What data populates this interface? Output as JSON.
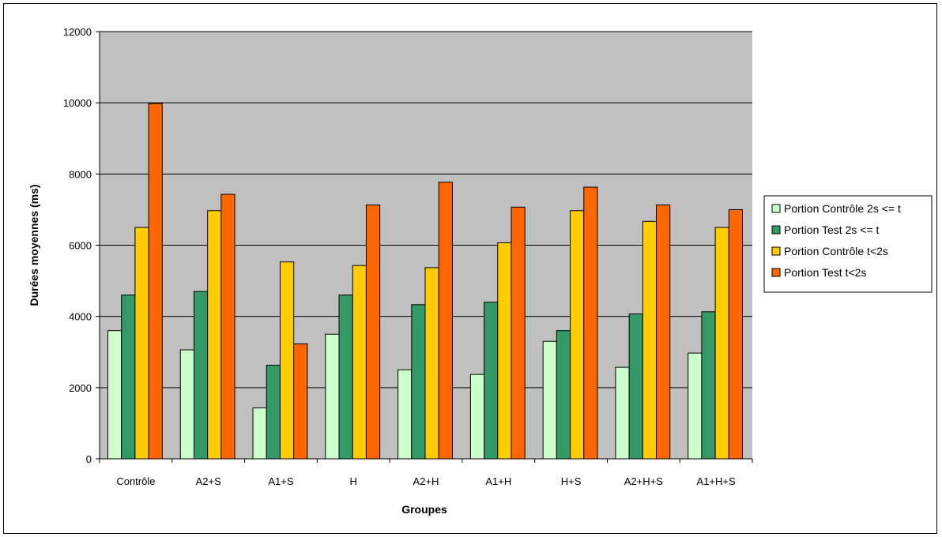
{
  "chart_data": {
    "type": "bar",
    "title": "",
    "xlabel": "Groupes",
    "ylabel": "Durées moyennes (ms)",
    "ylim": [
      0,
      12000
    ],
    "yticks": [
      0,
      2000,
      4000,
      6000,
      8000,
      10000,
      12000
    ],
    "grid": true,
    "plot_background": "#c0c0c0",
    "legend_position": "right",
    "categories": [
      "Contrôle",
      "A2+S",
      "A1+S",
      "H",
      "A2+H",
      "A1+H",
      "H+S",
      "A2+H+S",
      "A1+H+S"
    ],
    "series": [
      {
        "name": "Portion Contrôle 2s <= t",
        "color": "#ccffcc",
        "values": [
          3600,
          3060,
          1430,
          3500,
          2500,
          2370,
          3300,
          2570,
          2970
        ]
      },
      {
        "name": "Portion Test 2s <= t",
        "color": "#339966",
        "values": [
          4600,
          4700,
          2630,
          4600,
          4330,
          4400,
          3600,
          4070,
          4130
        ]
      },
      {
        "name": "Portion Contrôle t<2s",
        "color": "#ffcc00",
        "values": [
          6500,
          6970,
          5530,
          5430,
          5370,
          6070,
          6970,
          6670,
          6500
        ]
      },
      {
        "name": "Portion Test t<2s",
        "color": "#ff6600",
        "values": [
          9980,
          7430,
          3230,
          7130,
          7770,
          7070,
          7630,
          7130,
          7000
        ]
      }
    ]
  }
}
